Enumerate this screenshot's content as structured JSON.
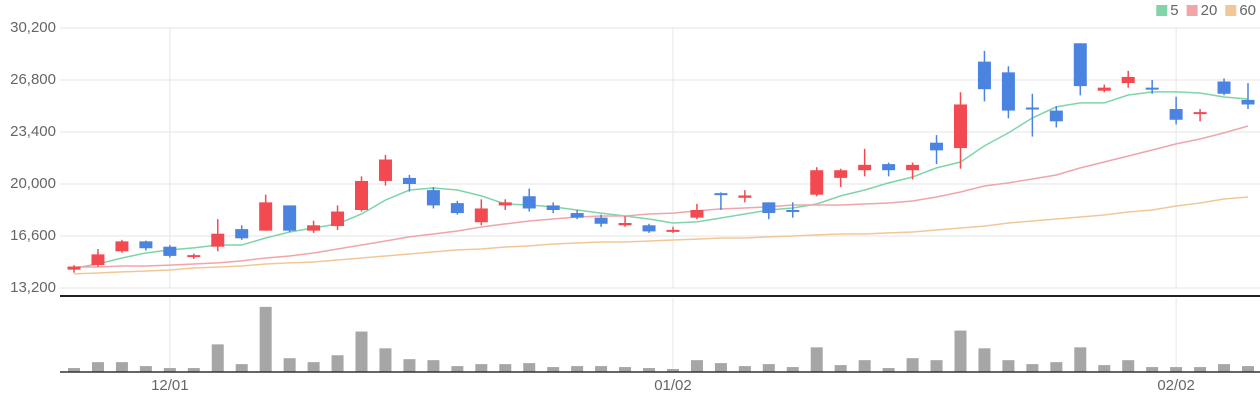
{
  "chart_data": {
    "type": "candlestick",
    "categories": [
      null,
      null,
      null,
      null,
      "12/01",
      null,
      null,
      null,
      null,
      null,
      null,
      null,
      null,
      null,
      null,
      null,
      null,
      null,
      null,
      null,
      null,
      null,
      null,
      null,
      null,
      "01/02",
      null,
      null,
      null,
      null,
      null,
      null,
      null,
      null,
      null,
      null,
      null,
      null,
      null,
      null,
      null,
      null,
      null,
      null,
      null,
      null,
      "02/02",
      null,
      null,
      null
    ],
    "open": [
      14400,
      14700,
      15600,
      16250,
      15900,
      15250,
      15900,
      17050,
      16950,
      18600,
      16950,
      17250,
      18300,
      20200,
      20400,
      19600,
      18750,
      17500,
      18600,
      19200,
      18600,
      18100,
      17800,
      17300,
      17300,
      16900,
      17800,
      19400,
      19100,
      18800,
      18300,
      19300,
      20400,
      20900,
      21300,
      20900,
      22700,
      22350,
      28000,
      27300,
      25000,
      24800,
      29200,
      26100,
      26600,
      26300,
      24900,
      24600,
      26700,
      25500
    ],
    "high": [
      14700,
      15750,
      16350,
      16300,
      16000,
      15450,
      17700,
      17300,
      19300,
      18600,
      17600,
      18600,
      20500,
      21900,
      20600,
      19800,
      18900,
      19000,
      19000,
      19700,
      18800,
      18300,
      18000,
      17900,
      17400,
      17200,
      18700,
      19450,
      19600,
      18800,
      18800,
      21100,
      21000,
      22300,
      21400,
      21400,
      23200,
      26000,
      28700,
      27700,
      25900,
      25100,
      29200,
      26500,
      27400,
      26800,
      25700,
      24900,
      26900,
      26600
    ],
    "low": [
      14200,
      14600,
      15500,
      15650,
      15200,
      15100,
      15600,
      16350,
      16950,
      16850,
      16800,
      17000,
      18200,
      19900,
      19500,
      18400,
      18000,
      17300,
      18300,
      18200,
      18100,
      17700,
      17200,
      17200,
      16800,
      16800,
      17700,
      18300,
      18800,
      17700,
      17800,
      19200,
      19800,
      20500,
      20500,
      20300,
      21300,
      21000,
      25400,
      24300,
      23100,
      23700,
      25800,
      26000,
      26300,
      25900,
      23900,
      24100,
      25800,
      24900
    ],
    "close": [
      14600,
      15400,
      16250,
      15800,
      15300,
      15350,
      16750,
      16450,
      18800,
      16950,
      17300,
      18200,
      20200,
      21600,
      20000,
      18600,
      18100,
      18400,
      18800,
      18400,
      18300,
      17800,
      17400,
      17450,
      16900,
      17000,
      18300,
      19300,
      19250,
      18100,
      18200,
      20900,
      20900,
      21250,
      20900,
      21250,
      22200,
      25200,
      26200,
      24800,
      24900,
      24100,
      26400,
      26300,
      27000,
      26200,
      24200,
      24700,
      25900,
      25200
    ],
    "up_color": "#f24a50",
    "down_color": "#4a83e0",
    "series": [
      {
        "name": "5",
        "color": "#7fd4a9",
        "values": [
          14500,
          14770,
          15160,
          15490,
          15690,
          15820,
          16010,
          16010,
          16470,
          16860,
          17120,
          17390,
          18040,
          18950,
          19610,
          19740,
          19610,
          19220,
          18690,
          18630,
          18500,
          18300,
          18100,
          17910,
          17710,
          17450,
          17520,
          17780,
          18040,
          18300,
          18430,
          18690,
          19220,
          19610,
          20070,
          20460,
          21050,
          21440,
          22490,
          23340,
          24320,
          25040,
          25300,
          25300,
          25820,
          26020,
          26020,
          25950,
          25690,
          25560
        ]
      },
      {
        "name": "20",
        "color": "#f0a5aa",
        "values": [
          14570,
          14570,
          14640,
          14640,
          14700,
          14770,
          14840,
          14970,
          15160,
          15290,
          15490,
          15750,
          16010,
          16270,
          16540,
          16730,
          16930,
          17190,
          17390,
          17580,
          17710,
          17840,
          17910,
          17910,
          18040,
          18100,
          18240,
          18370,
          18430,
          18500,
          18630,
          18630,
          18630,
          18690,
          18760,
          18890,
          19150,
          19480,
          19870,
          20070,
          20330,
          20590,
          21050,
          21440,
          21830,
          22220,
          22620,
          22940,
          23340,
          23790
        ]
      },
      {
        "name": "60",
        "color": "#f2c796",
        "values": [
          14120,
          14180,
          14250,
          14310,
          14380,
          14510,
          14570,
          14640,
          14770,
          14840,
          14900,
          15030,
          15160,
          15290,
          15420,
          15560,
          15690,
          15750,
          15880,
          15950,
          16080,
          16140,
          16210,
          16210,
          16270,
          16340,
          16400,
          16470,
          16470,
          16540,
          16600,
          16670,
          16730,
          16730,
          16800,
          16860,
          16990,
          17120,
          17250,
          17450,
          17580,
          17710,
          17840,
          17970,
          18170,
          18300,
          18560,
          18760,
          19020,
          19150
        ]
      }
    ],
    "volume": [
      4,
      10,
      10,
      6,
      4,
      4,
      28,
      8,
      66,
      14,
      10,
      17,
      41,
      24,
      13,
      12,
      6,
      8,
      8,
      9,
      5,
      6,
      6,
      5,
      4,
      3,
      12,
      9,
      6,
      8,
      5,
      25,
      7,
      12,
      4,
      14,
      12,
      42,
      24,
      12,
      8,
      10,
      25,
      7,
      12,
      5,
      5,
      5,
      8,
      6
    ],
    "volume_color": "#a6a6a6",
    "volume_ylim": [
      0,
      75
    ],
    "ylim": [
      13200,
      30200
    ],
    "yticks": [
      {
        "value": 13200,
        "label": "13,200"
      },
      {
        "value": 16600,
        "label": "16,600"
      },
      {
        "value": 20000,
        "label": "20,000"
      },
      {
        "value": 23400,
        "label": "23,400"
      },
      {
        "value": 26800,
        "label": "26,800"
      },
      {
        "value": 30200,
        "label": "30,200"
      }
    ],
    "grid": true,
    "legend": "top-right"
  }
}
